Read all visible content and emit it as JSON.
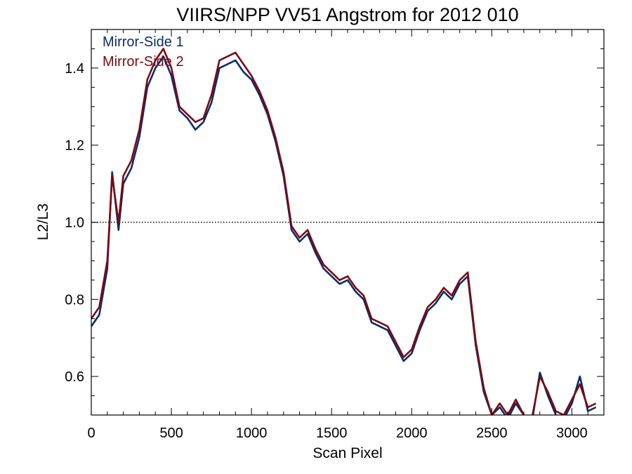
{
  "chart_data": {
    "type": "line",
    "title": "VIIRS/NPP VV51 Angstrom for 2012 010",
    "xlabel": "Scan Pixel",
    "ylabel": "L2/L3",
    "xlim": [
      0,
      3200
    ],
    "ylim": [
      0.5,
      1.5
    ],
    "x_ticks": [
      0,
      500,
      1000,
      1500,
      2000,
      2500,
      3000
    ],
    "x_tick_labels": [
      "0",
      "500",
      "1000",
      "1500",
      "2000",
      "2500",
      "3000"
    ],
    "y_ticks": [
      0.6,
      0.8,
      1.0,
      1.2,
      1.4
    ],
    "y_tick_labels": [
      "0.6",
      "0.8",
      "1.0",
      "1.2",
      "1.4"
    ],
    "reference_line": {
      "y": 1.0,
      "style": "dotted"
    },
    "legend_position": "top-left",
    "series": [
      {
        "name": "Mirror-Side 1",
        "color": "#0b2c6b",
        "x": [
          0,
          50,
          100,
          130,
          170,
          200,
          250,
          300,
          350,
          400,
          450,
          500,
          550,
          600,
          650,
          700,
          750,
          800,
          850,
          900,
          950,
          1000,
          1050,
          1100,
          1150,
          1200,
          1250,
          1300,
          1350,
          1400,
          1450,
          1500,
          1550,
          1600,
          1650,
          1700,
          1750,
          1800,
          1850,
          1900,
          1950,
          2000,
          2050,
          2100,
          2150,
          2200,
          2250,
          2300,
          2350,
          2400,
          2450,
          2500,
          2550,
          2600,
          2650,
          2700,
          2750,
          2800,
          2850,
          2900,
          2950,
          3000,
          3050,
          3100,
          3150
        ],
        "values": [
          0.73,
          0.76,
          0.88,
          1.13,
          0.98,
          1.1,
          1.14,
          1.22,
          1.35,
          1.4,
          1.43,
          1.38,
          1.29,
          1.27,
          1.24,
          1.26,
          1.31,
          1.4,
          1.41,
          1.42,
          1.39,
          1.37,
          1.33,
          1.28,
          1.21,
          1.12,
          0.98,
          0.95,
          0.97,
          0.92,
          0.88,
          0.86,
          0.84,
          0.85,
          0.82,
          0.8,
          0.74,
          0.73,
          0.72,
          0.68,
          0.64,
          0.66,
          0.72,
          0.77,
          0.79,
          0.82,
          0.8,
          0.84,
          0.86,
          0.68,
          0.56,
          0.5,
          0.52,
          0.49,
          0.53,
          0.5,
          0.48,
          0.61,
          0.55,
          0.5,
          0.49,
          0.53,
          0.6,
          0.51,
          0.52
        ]
      },
      {
        "name": "Mirror-Side 2",
        "color": "#7a0a12",
        "x": [
          0,
          50,
          100,
          130,
          170,
          200,
          250,
          300,
          350,
          400,
          450,
          500,
          550,
          600,
          650,
          700,
          750,
          800,
          850,
          900,
          950,
          1000,
          1050,
          1100,
          1150,
          1200,
          1250,
          1300,
          1350,
          1400,
          1450,
          1500,
          1550,
          1600,
          1650,
          1700,
          1750,
          1800,
          1850,
          1900,
          1950,
          2000,
          2050,
          2100,
          2150,
          2200,
          2250,
          2300,
          2350,
          2400,
          2450,
          2500,
          2550,
          2600,
          2650,
          2700,
          2750,
          2800,
          2850,
          2900,
          2950,
          3000,
          3050,
          3100,
          3150
        ],
        "values": [
          0.75,
          0.78,
          0.9,
          1.12,
          1.0,
          1.12,
          1.16,
          1.24,
          1.37,
          1.42,
          1.45,
          1.4,
          1.3,
          1.28,
          1.26,
          1.27,
          1.33,
          1.42,
          1.43,
          1.44,
          1.41,
          1.38,
          1.34,
          1.29,
          1.22,
          1.13,
          0.99,
          0.96,
          0.98,
          0.93,
          0.89,
          0.87,
          0.85,
          0.86,
          0.83,
          0.81,
          0.75,
          0.74,
          0.73,
          0.69,
          0.65,
          0.67,
          0.73,
          0.78,
          0.8,
          0.83,
          0.81,
          0.85,
          0.87,
          0.69,
          0.57,
          0.5,
          0.53,
          0.5,
          0.54,
          0.5,
          0.49,
          0.6,
          0.56,
          0.51,
          0.5,
          0.54,
          0.58,
          0.52,
          0.53
        ]
      }
    ]
  }
}
